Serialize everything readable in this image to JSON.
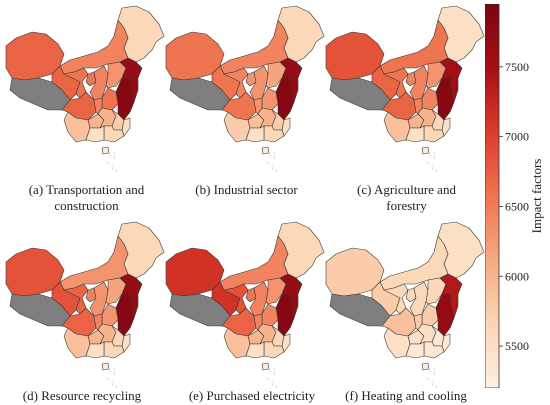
{
  "colorbar": {
    "title": "Impact factors",
    "min": 5200,
    "max": 7950,
    "ticks": [
      7500,
      7000,
      6500,
      6000,
      5500
    ],
    "colors": [
      "#fdf0e1",
      "#fbd5b3",
      "#f6aa82",
      "#ef7450",
      "#dc3b2a",
      "#a50f15",
      "#7a0510"
    ]
  },
  "no_data_color": "#7f7f7f",
  "panels": [
    {
      "caption": "(a) Transportation and construction",
      "caption_lines": [
        "(a) Transportation and",
        "construction"
      ],
      "region_levels": {
        "ne": 0.15,
        "nei": 0.45,
        "xin": 0.55,
        "tib": -1,
        "qin": 0.55,
        "gan": 0.5,
        "nin": 0.5,
        "sha": 0.45,
        "hen": 0.4,
        "sd": 0.9,
        "js": 0.95,
        "hb": 0.5,
        "sc": 0.55,
        "cq": 0.45,
        "gz": 0.3,
        "yn": 0.25,
        "hun": 0.3,
        "jx": 0.2,
        "fj": 0.1,
        "gd": 0.15,
        "gx": 0.1,
        "hai": 0.05
      }
    },
    {
      "caption": "(b) Industrial sector",
      "caption_lines": [
        "(b) Industrial sector"
      ],
      "region_levels": {
        "ne": 0.15,
        "nei": 0.45,
        "xin": 0.5,
        "tib": -1,
        "qin": 0.5,
        "gan": 0.45,
        "nin": 0.4,
        "sha": 0.4,
        "hen": 0.35,
        "sd": 0.9,
        "js": 0.95,
        "hb": 0.4,
        "sc": 0.5,
        "cq": 0.4,
        "gz": 0.25,
        "yn": 0.2,
        "hun": 0.3,
        "jx": 0.2,
        "fj": 0.1,
        "gd": 0.15,
        "gx": 0.1,
        "hai": 0.05
      }
    },
    {
      "caption": "(c) Agriculture and forestry",
      "caption_lines": [
        "(c) Agriculture and",
        "forestry"
      ],
      "region_levels": {
        "ne": 0.1,
        "nei": 0.5,
        "xin": 0.6,
        "tib": -1,
        "qin": 0.55,
        "gan": 0.5,
        "nin": 0.45,
        "sha": 0.45,
        "hen": 0.4,
        "sd": 0.85,
        "js": 0.95,
        "hb": 0.45,
        "sc": 0.55,
        "cq": 0.45,
        "gz": 0.3,
        "yn": 0.25,
        "hun": 0.3,
        "jx": 0.15,
        "fj": 0.1,
        "gd": 0.15,
        "gx": 0.1,
        "hai": 0.05
      }
    },
    {
      "caption": "(d) Resource recycling",
      "caption_lines": [
        "(d) Resource recycling"
      ],
      "region_levels": {
        "ne": 0.15,
        "nei": 0.4,
        "xin": 0.6,
        "tib": -1,
        "qin": 0.6,
        "gan": 0.55,
        "nin": 0.45,
        "sha": 0.4,
        "hen": 0.35,
        "sd": 0.9,
        "js": 0.95,
        "hb": 0.4,
        "sc": 0.55,
        "cq": 0.45,
        "gz": 0.3,
        "yn": 0.25,
        "hun": 0.3,
        "jx": 0.15,
        "fj": 0.1,
        "gd": 0.15,
        "gx": 0.1,
        "hai": 0.05
      }
    },
    {
      "caption": "(e) Purchased electricity",
      "caption_lines": [
        "(e) Purchased electricity"
      ],
      "region_levels": {
        "ne": 0.15,
        "nei": 0.45,
        "xin": 0.7,
        "tib": -1,
        "qin": 0.7,
        "gan": 0.6,
        "nin": 0.5,
        "sha": 0.45,
        "hen": 0.4,
        "sd": 0.9,
        "js": 0.95,
        "hb": 0.45,
        "sc": 0.55,
        "cq": 0.45,
        "gz": 0.3,
        "yn": 0.25,
        "hun": 0.3,
        "jx": 0.15,
        "fj": 0.1,
        "gd": 0.15,
        "gx": 0.1,
        "hai": 0.05
      }
    },
    {
      "caption": "(f) Heating and cooling",
      "caption_lines": [
        "(f) Heating and cooling"
      ],
      "region_levels": {
        "ne": 0.1,
        "nei": 0.15,
        "xin": 0.2,
        "tib": -1,
        "qin": 0.2,
        "gan": 0.15,
        "nin": 0.15,
        "sha": 0.15,
        "hen": 0.15,
        "sd": 0.8,
        "js": 0.9,
        "hb": 0.2,
        "sc": 0.25,
        "cq": 0.2,
        "gz": 0.1,
        "yn": 0.1,
        "hun": 0.1,
        "jx": 0.05,
        "fj": 0.05,
        "gd": 0.05,
        "gx": 0.05,
        "hai": 0.02
      }
    }
  ]
}
